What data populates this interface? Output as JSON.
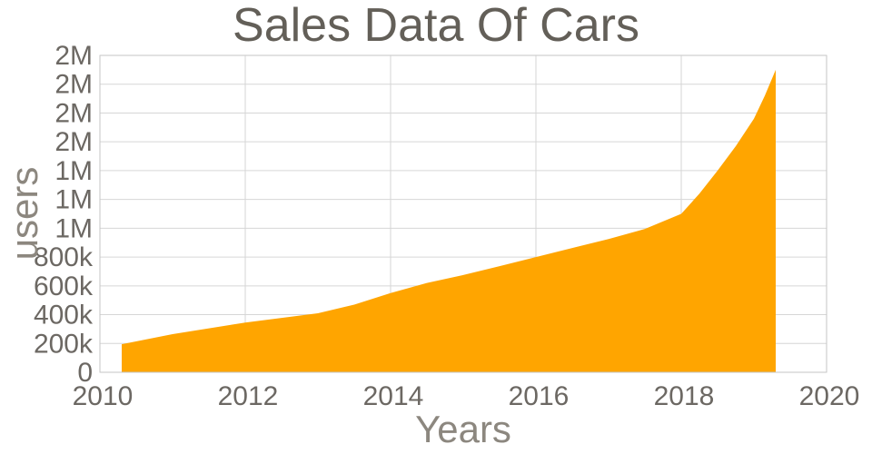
{
  "chart_data": {
    "type": "area",
    "title": "Sales Data Of Cars",
    "xlabel": "Years",
    "ylabel": "users",
    "legend": "none",
    "grid": true,
    "xlim": [
      2010,
      2020
    ],
    "ylim": [
      0,
      2200000
    ],
    "x_ticks": [
      {
        "value": 2010,
        "label": "2010"
      },
      {
        "value": 2012,
        "label": "2012"
      },
      {
        "value": 2014,
        "label": "2014"
      },
      {
        "value": 2016,
        "label": "2016"
      },
      {
        "value": 2018,
        "label": "2018"
      },
      {
        "value": 2020,
        "label": "2020"
      }
    ],
    "y_ticks": [
      {
        "value": 0,
        "label": "0"
      },
      {
        "value": 200000,
        "label": "200k"
      },
      {
        "value": 400000,
        "label": "400k"
      },
      {
        "value": 600000,
        "label": "600k"
      },
      {
        "value": 800000,
        "label": "800k"
      },
      {
        "value": 1000000,
        "label": "1M"
      },
      {
        "value": 1200000,
        "label": "1M"
      },
      {
        "value": 1400000,
        "label": "1M"
      },
      {
        "value": 1600000,
        "label": "2M"
      },
      {
        "value": 1800000,
        "label": "2M"
      },
      {
        "value": 2000000,
        "label": "2M"
      },
      {
        "value": 2200000,
        "label": "2M"
      }
    ],
    "series": [
      {
        "name": "users",
        "x": [
          2010.3,
          2011,
          2012,
          2013,
          2013.5,
          2014,
          2014.5,
          2015,
          2015.5,
          2016,
          2016.5,
          2017,
          2017.5,
          2018,
          2018.25,
          2018.5,
          2018.75,
          2019,
          2019.15,
          2019.3
        ],
        "y": [
          195000,
          265000,
          345000,
          410000,
          470000,
          550000,
          620000,
          675000,
          737000,
          800000,
          863000,
          925000,
          995000,
          1100000,
          1240000,
          1400000,
          1570000,
          1760000,
          1920000,
          2100000
        ]
      }
    ],
    "colors": {
      "area_fill": "#ffa500",
      "grid": "#d6d6d6",
      "axis_border": "#c6c6c6",
      "title_text": "#635f58",
      "tick_text": "#6c6863",
      "axis_label_text": "#8c877f",
      "background": "#ffffff"
    }
  }
}
